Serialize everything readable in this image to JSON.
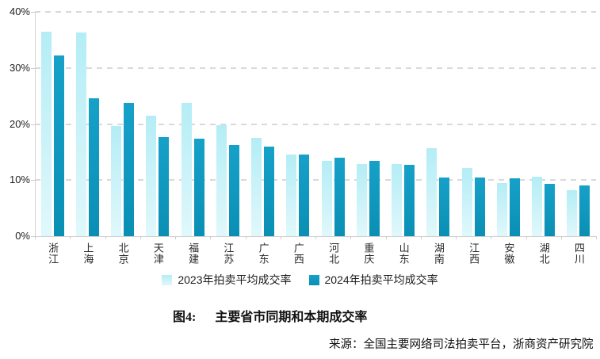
{
  "chart_data": {
    "type": "bar",
    "title": "",
    "xlabel": "",
    "ylabel": "",
    "ylim": [
      0,
      40
    ],
    "ytick_labels": [
      "0%",
      "10%",
      "20%",
      "30%",
      "40%"
    ],
    "grid": "horizontal-dashed",
    "legend_position": "bottom",
    "categories": [
      "浙江",
      "上海",
      "北京",
      "天津",
      "福建",
      "江苏",
      "广东",
      "广西",
      "河北",
      "重庆",
      "山东",
      "湖南",
      "江西",
      "安徽",
      "湖北",
      "四川"
    ],
    "series": [
      {
        "name": "2023年拍卖平均成交率",
        "color": "#b9eef6",
        "color_top": "#b4edf6",
        "color_bottom": "#e0f8fb",
        "values": [
          36.4,
          36.3,
          19.6,
          21.5,
          23.7,
          19.8,
          17.5,
          14.5,
          13.4,
          12.9,
          12.9,
          15.7,
          12.2,
          9.5,
          10.6,
          8.2
        ]
      },
      {
        "name": "2024年拍卖平均成交率",
        "color": "#12a); ",
        "color_top": "#16a1c9",
        "color_bottom": "#0a8fb4",
        "values": [
          32.2,
          24.6,
          23.8,
          17.7,
          17.4,
          16.3,
          16.0,
          14.5,
          14.0,
          13.5,
          12.7,
          10.5,
          10.4,
          10.3,
          9.3,
          9.0
        ]
      }
    ]
  },
  "caption": {
    "label": "图4:",
    "title": "主要省市同期和本期成交率"
  },
  "source": {
    "text": "来源：全国主要网络司法拍卖平台，浙商资产研究院"
  },
  "colors": {
    "series_2023": "#b9eef6",
    "series_2024": "#0f98c0",
    "grid": "#d9d9d9",
    "axis": "#cfcfcf",
    "text": "#1d1d1f"
  }
}
